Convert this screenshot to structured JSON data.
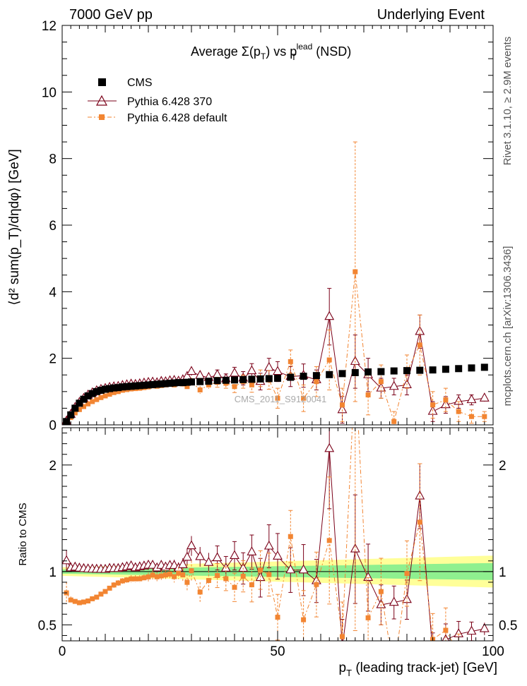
{
  "header": {
    "left": "7000 GeV pp",
    "right": "Underlying Event"
  },
  "side": {
    "rivet": "Rivet 3.1.10, ≥ 2.9M events",
    "mcplots": "mcplots.cern.ch [arXiv:1306.3436]"
  },
  "watermark": "CMS_2011_S9120041",
  "colors": {
    "cms": "#000000",
    "p370": "#7a0018",
    "pdef": "#f28532",
    "band_inner": "#8ff08f",
    "band_outer": "#ffff99"
  },
  "chart_data": [
    {
      "type": "scatter",
      "title": "Average Σ(p_T) vs p_T^lead (NSD)",
      "title_parts": {
        "a": "Average ",
        "sigma": "Σ(p",
        "sub1": "T",
        "close": ")",
        "vs": " vs p",
        "sub2": "T",
        "sup2": "lead",
        "nsd": " (NSD)"
      },
      "ylabel": "⟨d² sum(p_T)/dηdφ⟩ [GeV]",
      "xlim": [
        0,
        100
      ],
      "ylim": [
        0,
        12
      ],
      "yticks": [
        0,
        2,
        4,
        6,
        8,
        10,
        12
      ],
      "legend": [
        "CMS",
        "Pythia 6.428 370",
        "Pythia 6.428 default"
      ],
      "legend_position": "top-left",
      "series": [
        {
          "name": "CMS",
          "x": [
            1,
            2,
            3,
            4,
            5,
            6,
            7,
            8,
            9,
            10,
            11,
            12,
            13,
            14,
            15,
            16,
            17,
            18,
            19,
            20,
            21,
            22,
            23,
            24,
            25,
            26,
            27,
            28,
            29,
            30,
            32,
            34,
            36,
            38,
            40,
            42,
            44,
            46,
            48,
            50,
            53,
            56,
            59,
            62,
            65,
            68,
            71,
            74,
            77,
            80,
            83,
            86,
            89,
            92,
            95,
            98
          ],
          "y": [
            0.1,
            0.3,
            0.5,
            0.65,
            0.77,
            0.87,
            0.94,
            1.0,
            1.04,
            1.07,
            1.09,
            1.11,
            1.12,
            1.14,
            1.15,
            1.16,
            1.17,
            1.18,
            1.19,
            1.2,
            1.21,
            1.22,
            1.23,
            1.24,
            1.25,
            1.26,
            1.27,
            1.27,
            1.28,
            1.29,
            1.3,
            1.31,
            1.33,
            1.34,
            1.35,
            1.36,
            1.37,
            1.38,
            1.39,
            1.4,
            1.43,
            1.46,
            1.48,
            1.51,
            1.54,
            1.57,
            1.59,
            1.6,
            1.62,
            1.63,
            1.64,
            1.65,
            1.67,
            1.69,
            1.71,
            1.73
          ]
        },
        {
          "name": "Pythia 6.428 370",
          "x": [
            1,
            2,
            3,
            4,
            5,
            6,
            7,
            8,
            9,
            10,
            11,
            12,
            13,
            14,
            15,
            16,
            17,
            18,
            19,
            20,
            21,
            22,
            23,
            24,
            25,
            26,
            27,
            28,
            29,
            30,
            32,
            34,
            36,
            38,
            40,
            42,
            44,
            46,
            48,
            50,
            53,
            56,
            59,
            62,
            65,
            68,
            71,
            74,
            77,
            80,
            83,
            86,
            89,
            92,
            95,
            98
          ],
          "y": [
            0.11,
            0.31,
            0.52,
            0.67,
            0.79,
            0.89,
            0.96,
            1.02,
            1.06,
            1.09,
            1.12,
            1.14,
            1.15,
            1.18,
            1.2,
            1.22,
            1.21,
            1.23,
            1.25,
            1.27,
            1.28,
            1.26,
            1.3,
            1.29,
            1.32,
            1.33,
            1.31,
            1.35,
            1.45,
            1.6,
            1.48,
            1.42,
            1.5,
            1.38,
            1.55,
            1.4,
            1.62,
            1.3,
            1.72,
            1.6,
            1.45,
            1.48,
            1.35,
            3.25,
            0.45,
            1.9,
            1.5,
            1.1,
            1.15,
            1.2,
            2.8,
            0.4,
            0.6,
            0.7,
            0.75,
            0.8
          ],
          "yerr": [
            0.01,
            0.01,
            0.01,
            0.01,
            0.01,
            0.02,
            0.02,
            0.02,
            0.02,
            0.02,
            0.02,
            0.03,
            0.03,
            0.03,
            0.03,
            0.04,
            0.04,
            0.04,
            0.04,
            0.05,
            0.05,
            0.05,
            0.06,
            0.06,
            0.06,
            0.07,
            0.07,
            0.08,
            0.1,
            0.12,
            0.12,
            0.12,
            0.15,
            0.15,
            0.18,
            0.2,
            0.22,
            0.25,
            0.28,
            0.3,
            0.3,
            0.35,
            0.3,
            0.85,
            0.4,
            0.8,
            0.5,
            0.3,
            0.25,
            0.3,
            0.5,
            0.3,
            0.25,
            0.2,
            0.15,
            0.1
          ]
        },
        {
          "name": "Pythia 6.428 default",
          "x": [
            1,
            2,
            3,
            4,
            5,
            6,
            7,
            8,
            9,
            10,
            11,
            12,
            13,
            14,
            15,
            16,
            17,
            18,
            19,
            20,
            21,
            22,
            23,
            24,
            25,
            26,
            27,
            28,
            29,
            30,
            32,
            34,
            36,
            38,
            40,
            42,
            44,
            46,
            48,
            50,
            53,
            56,
            59,
            62,
            65,
            68,
            71,
            74,
            77,
            80,
            83,
            86,
            89,
            92,
            95,
            98
          ],
          "y": [
            0.08,
            0.22,
            0.36,
            0.46,
            0.55,
            0.63,
            0.7,
            0.76,
            0.82,
            0.87,
            0.92,
            0.97,
            1.0,
            1.04,
            1.06,
            1.08,
            1.09,
            1.1,
            1.12,
            1.14,
            1.17,
            1.16,
            1.18,
            1.2,
            1.22,
            1.2,
            1.25,
            1.23,
            1.15,
            1.3,
            1.05,
            1.2,
            1.28,
            1.25,
            1.15,
            1.3,
            1.2,
            1.4,
            1.35,
            0.8,
            1.9,
            0.8,
            1.3,
            1.95,
            0.6,
            4.6,
            0.9,
            1.3,
            0.1,
            1.6,
            2.4,
            0.6,
            0.75,
            0.4,
            0.25,
            0.25
          ],
          "yerr": [
            0.01,
            0.01,
            0.01,
            0.01,
            0.01,
            0.02,
            0.02,
            0.02,
            0.02,
            0.02,
            0.02,
            0.03,
            0.03,
            0.03,
            0.03,
            0.04,
            0.04,
            0.04,
            0.04,
            0.05,
            0.05,
            0.05,
            0.06,
            0.06,
            0.06,
            0.07,
            0.07,
            0.08,
            0.1,
            0.12,
            0.12,
            0.12,
            0.15,
            0.15,
            0.18,
            0.2,
            0.22,
            0.25,
            0.28,
            0.3,
            0.35,
            0.4,
            0.45,
            0.9,
            0.5,
            3.9,
            0.6,
            0.5,
            0.3,
            0.5,
            0.9,
            0.4,
            0.35,
            0.3,
            0.2,
            0.15
          ]
        }
      ]
    },
    {
      "type": "scatter",
      "ylabel": "Ratio to CMS",
      "xlabel": "p_T (leading track-jet) [GeV]",
      "xlabel_parts": {
        "p": "p",
        "sub": "T",
        "rest": " (leading track-jet) [GeV]"
      },
      "xlim": [
        0,
        100
      ],
      "ylim": [
        0.35,
        2.35
      ],
      "xticks": [
        0,
        50,
        100
      ],
      "yticks": [
        0.5,
        1,
        2
      ],
      "ytick_labels": [
        "0.5",
        "1",
        "2"
      ],
      "band_inner": {
        "x": [
          0,
          100
        ],
        "half_width_start": 0.02,
        "half_width_end": 0.08
      },
      "band_outer": {
        "x": [
          0,
          100
        ],
        "half_width_start": 0.04,
        "half_width_end": 0.15
      }
    }
  ]
}
